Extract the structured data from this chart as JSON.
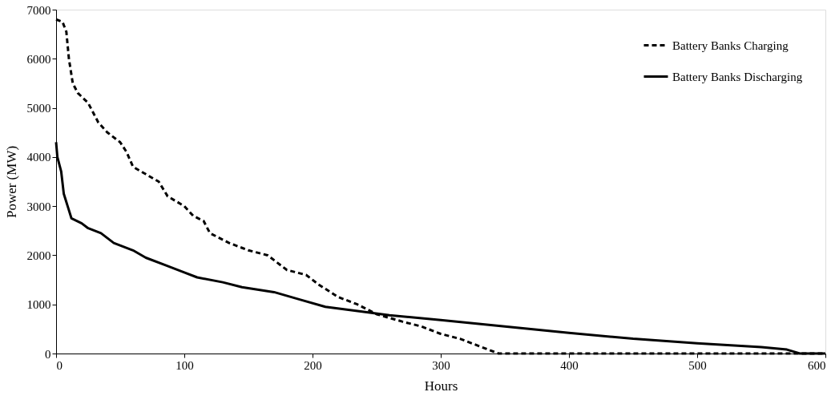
{
  "chart_data": {
    "type": "line",
    "xlabel": "Hours",
    "ylabel": "Power (MW)",
    "xlim": [
      0,
      600
    ],
    "xticks": [
      0,
      100,
      200,
      300,
      400,
      500,
      600
    ],
    "ylim": [
      0,
      7000
    ],
    "yticks": [
      0,
      1000,
      2000,
      3000,
      4000,
      5000,
      6000,
      7000
    ],
    "grid": false,
    "legend": "top right",
    "marker": "none",
    "series": [
      {
        "name": "Battery Banks Charging",
        "color": "#000000",
        "line_style": "dashed",
        "x": [
          0,
          5,
          8,
          10,
          13,
          17,
          25,
          33,
          40,
          50,
          55,
          60,
          70,
          80,
          87,
          100,
          107,
          115,
          120,
          135,
          150,
          165,
          180,
          195,
          205,
          220,
          235,
          250,
          270,
          285,
          300,
          315,
          330,
          345,
          600
        ],
        "values": [
          6800,
          6750,
          6550,
          6000,
          5500,
          5300,
          5100,
          4700,
          4500,
          4300,
          4100,
          3800,
          3650,
          3500,
          3200,
          3000,
          2800,
          2700,
          2450,
          2250,
          2100,
          2000,
          1700,
          1600,
          1400,
          1150,
          1000,
          800,
          650,
          550,
          400,
          300,
          150,
          0,
          0
        ]
      },
      {
        "name": "Battery Banks Discharging",
        "color": "#000000",
        "line_style": "solid",
        "x": [
          0,
          1,
          4,
          6,
          9,
          12,
          20,
          25,
          35,
          45,
          60,
          70,
          85,
          100,
          110,
          130,
          145,
          170,
          190,
          210,
          240,
          260,
          300,
          350,
          400,
          450,
          500,
          550,
          570,
          580,
          600
        ],
        "values": [
          4300,
          4000,
          3700,
          3250,
          3000,
          2750,
          2650,
          2550,
          2450,
          2250,
          2100,
          1950,
          1800,
          1650,
          1550,
          1450,
          1350,
          1250,
          1100,
          950,
          850,
          780,
          680,
          550,
          420,
          300,
          210,
          130,
          80,
          0,
          0
        ]
      }
    ]
  }
}
